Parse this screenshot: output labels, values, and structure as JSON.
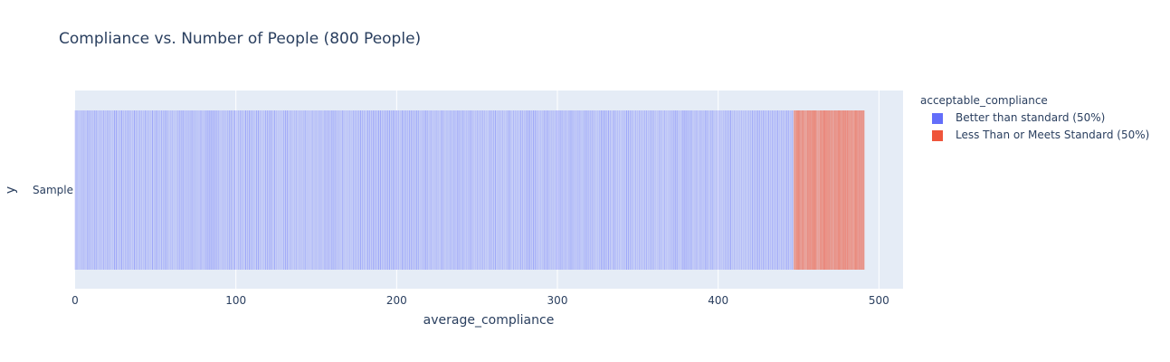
{
  "chart_title": "Compliance vs. Number of People (800 People)",
  "legend": {
    "title": "acceptable_compliance",
    "items": [
      {
        "label": "Better than standard (50%)",
        "color": "#636efa"
      },
      {
        "label": "Less Than or Meets Standard (50%)",
        "color": "#ef553b"
      }
    ]
  },
  "chart_data": {
    "type": "bar",
    "title": "Compliance vs. Number of People (800 People)",
    "xlabel": "average_compliance",
    "ylabel": "y",
    "y_categories": [
      "Sample"
    ],
    "xlim": [
      0,
      515
    ],
    "x_ticks": [
      0,
      100,
      200,
      300,
      400,
      500
    ],
    "x_tick_labels": [
      "0",
      "100",
      "200",
      "300",
      "400",
      "500"
    ],
    "grid": true,
    "legend_position": "top-right",
    "series": [
      {
        "name": "Better than standard (50%)",
        "color": "#636efa",
        "x_range": [
          0,
          447
        ],
        "count": 400
      },
      {
        "name": "Less Than or Meets Standard (50%)",
        "color": "#ef553b",
        "x_range": [
          447,
          491
        ],
        "count": 400
      }
    ]
  }
}
